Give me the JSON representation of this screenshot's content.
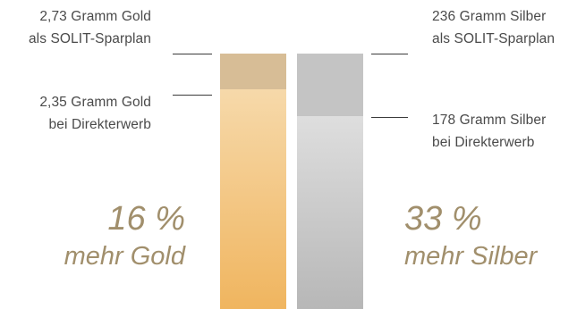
{
  "chart_data": {
    "type": "bar",
    "colors": {
      "gold_top": "#d7bd96",
      "gold_body_top": "#f6d9aa",
      "gold_body_bottom": "#f0b55f",
      "silver_top": "#c4c4c4",
      "silver_body_top": "#dedede",
      "silver_body_bottom": "#b7b7b7",
      "accent_text": "#a18f6c",
      "label_text": "#4a4a4a"
    },
    "bars": [
      {
        "metal": "gold",
        "unit": "g",
        "sparplan_value": 2.73,
        "direkt_value": 2.35,
        "sparplan_label": [
          "2,73 Gramm Gold",
          "als SOLIT-Sparplan"
        ],
        "direkt_label": [
          "2,35 Gramm Gold",
          "bei Direkterwerb"
        ],
        "percent_label": "16 %",
        "percent_text": "mehr Gold"
      },
      {
        "metal": "silver",
        "unit": "g",
        "sparplan_value": 236,
        "direkt_value": 178,
        "sparplan_label": [
          "236 Gramm Silber",
          "als SOLIT-Sparplan"
        ],
        "direkt_label": [
          "178 Gramm Silber",
          "bei Direkterwerb"
        ],
        "percent_label": "33 %",
        "percent_text": "mehr Silber"
      }
    ]
  }
}
